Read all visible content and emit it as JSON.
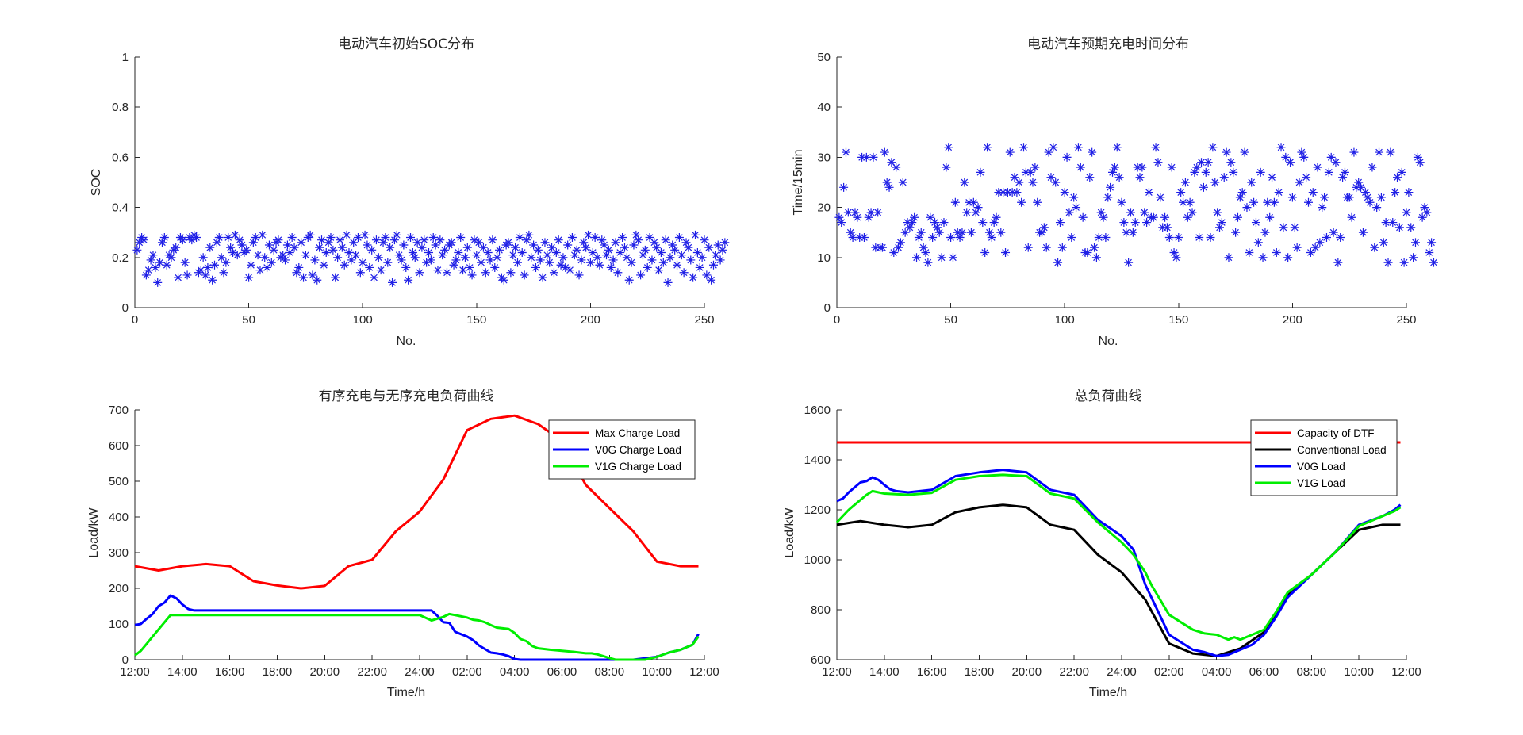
{
  "chart_data": [
    {
      "type": "scatter",
      "title": "电动汽车初始SOC分布",
      "xlabel": "No.",
      "ylabel": "SOC",
      "xlim": [
        0,
        250
      ],
      "ylim": [
        0,
        1
      ],
      "xticks": [
        "0",
        "50",
        "100",
        "150",
        "200",
        "250"
      ],
      "yticks": [
        "0",
        "0.2",
        "0.4",
        "0.6",
        "0.8",
        "1"
      ],
      "marker_color": "#1f1fe6",
      "grid": false,
      "x_start": 1,
      "y": [
        0.23,
        0.26,
        0.28,
        0.27,
        0.13,
        0.15,
        0.19,
        0.21,
        0.16,
        0.1,
        0.18,
        0.26,
        0.28,
        0.17,
        0.21,
        0.2,
        0.23,
        0.24,
        0.12,
        0.28,
        0.27,
        0.18,
        0.13,
        0.28,
        0.27,
        0.29,
        0.28,
        0.14,
        0.15,
        0.2,
        0.13,
        0.16,
        0.24,
        0.11,
        0.17,
        0.26,
        0.28,
        0.2,
        0.14,
        0.18,
        0.28,
        0.24,
        0.22,
        0.29,
        0.21,
        0.27,
        0.25,
        0.22,
        0.23,
        0.12,
        0.17,
        0.26,
        0.28,
        0.21,
        0.15,
        0.29,
        0.2,
        0.16,
        0.25,
        0.18,
        0.23,
        0.26,
        0.27,
        0.2,
        0.21,
        0.19,
        0.25,
        0.22,
        0.28,
        0.24,
        0.14,
        0.16,
        0.26,
        0.12,
        0.21,
        0.28,
        0.29,
        0.13,
        0.19,
        0.11,
        0.24,
        0.27,
        0.17,
        0.22,
        0.26,
        0.28,
        0.23,
        0.12,
        0.2,
        0.27,
        0.24,
        0.17,
        0.29,
        0.22,
        0.19,
        0.26,
        0.21,
        0.28,
        0.14,
        0.18,
        0.29,
        0.25,
        0.16,
        0.23,
        0.12,
        0.27,
        0.2,
        0.15,
        0.26,
        0.28,
        0.18,
        0.24,
        0.1,
        0.27,
        0.29,
        0.21,
        0.19,
        0.25,
        0.16,
        0.11,
        0.28,
        0.22,
        0.2,
        0.26,
        0.14,
        0.24,
        0.27,
        0.18,
        0.22,
        0.19,
        0.28,
        0.25,
        0.15,
        0.27,
        0.21,
        0.23,
        0.14,
        0.25,
        0.26,
        0.17,
        0.19,
        0.22,
        0.28,
        0.15,
        0.2,
        0.24,
        0.16,
        0.13,
        0.27,
        0.21,
        0.26,
        0.18,
        0.24,
        0.14,
        0.22,
        0.19,
        0.27,
        0.16,
        0.2,
        0.23,
        0.12,
        0.11,
        0.25,
        0.26,
        0.14,
        0.21,
        0.24,
        0.18,
        0.28,
        0.22,
        0.13,
        0.27,
        0.29,
        0.2,
        0.25,
        0.16,
        0.23,
        0.19,
        0.12,
        0.26,
        0.21,
        0.18,
        0.24,
        0.14,
        0.22,
        0.27,
        0.17,
        0.2,
        0.16,
        0.25,
        0.15,
        0.28,
        0.21,
        0.23,
        0.13,
        0.19,
        0.26,
        0.24,
        0.29,
        0.18,
        0.22,
        0.28,
        0.2,
        0.17,
        0.27,
        0.25,
        0.21,
        0.23,
        0.16,
        0.19,
        0.26,
        0.14,
        0.22,
        0.28,
        0.24,
        0.2,
        0.11,
        0.18,
        0.25,
        0.29,
        0.27,
        0.13,
        0.21,
        0.23,
        0.16,
        0.28,
        0.19,
        0.26,
        0.24,
        0.15,
        0.22,
        0.18,
        0.27,
        0.1,
        0.2,
        0.25,
        0.23,
        0.17,
        0.28,
        0.21,
        0.14,
        0.26,
        0.24,
        0.19,
        0.12,
        0.29,
        0.22,
        0.16,
        0.2,
        0.27,
        0.13,
        0.24,
        0.11,
        0.17,
        0.21,
        0.25,
        0.19,
        0.23,
        0.26
      ]
    },
    {
      "type": "scatter",
      "title": "电动汽车预期充电时间分布",
      "xlabel": "No.",
      "ylabel": "Time/15min",
      "xlim": [
        0,
        250
      ],
      "ylim": [
        0,
        50
      ],
      "xticks": [
        "0",
        "50",
        "100",
        "150",
        "200",
        "250"
      ],
      "yticks": [
        "0",
        "10",
        "20",
        "30",
        "40",
        "50"
      ],
      "marker_color": "#1f1fe6",
      "grid": false,
      "x_start": 1,
      "y": [
        18,
        17,
        24,
        31,
        19,
        15,
        14,
        19,
        18,
        14,
        30,
        14,
        30,
        18,
        19,
        30,
        12,
        19,
        12,
        12,
        31,
        25,
        24,
        29,
        11,
        28,
        12,
        13,
        25,
        15,
        17,
        16,
        17,
        18,
        10,
        14,
        15,
        12,
        11,
        9,
        18,
        14,
        17,
        16,
        15,
        10,
        17,
        28,
        32,
        14,
        10,
        21,
        15,
        14,
        15,
        25,
        19,
        21,
        15,
        21,
        19,
        20,
        27,
        17,
        11,
        32,
        15,
        14,
        17,
        18,
        23,
        15,
        23,
        11,
        23,
        31,
        23,
        26,
        23,
        25,
        21,
        32,
        27,
        12,
        27,
        25,
        28,
        21,
        15,
        15,
        16,
        12,
        31,
        26,
        32,
        25,
        9,
        17,
        12,
        23,
        30,
        19,
        14,
        22,
        20,
        32,
        28,
        18,
        11,
        11,
        26,
        31,
        12,
        10,
        14,
        19,
        18,
        14,
        22,
        24,
        27,
        28,
        32,
        26,
        21,
        17,
        15,
        9,
        19,
        15,
        17,
        28,
        26,
        28,
        19,
        17,
        23,
        18,
        18,
        32,
        29,
        22,
        16,
        18,
        16,
        14,
        28,
        11,
        10,
        14,
        23,
        21,
        25,
        18,
        21,
        19,
        27,
        28,
        14,
        29,
        24,
        27,
        29,
        14,
        32,
        25,
        19,
        16,
        17,
        26,
        31,
        10,
        29,
        27,
        15,
        18,
        22,
        23,
        31,
        20,
        11,
        25,
        21,
        17,
        13,
        27,
        10,
        15,
        21,
        18,
        26,
        21,
        11,
        23,
        32,
        16,
        30,
        10,
        29,
        22,
        16,
        12,
        25,
        31,
        30,
        26,
        21,
        11,
        23,
        12,
        28,
        13,
        20,
        22,
        14,
        27,
        30,
        15,
        29,
        9,
        14,
        26,
        27,
        22,
        22,
        18,
        31,
        24,
        25,
        24,
        15,
        23,
        22,
        21,
        28,
        12,
        20,
        31,
        22,
        13,
        17,
        9,
        31,
        17,
        23,
        26,
        16,
        27,
        9,
        19,
        23,
        16,
        10,
        13,
        30,
        29,
        18,
        20,
        19,
        11,
        13,
        9
      ]
    },
    {
      "type": "line",
      "title": "有序充电与无序充电负荷曲线",
      "xlabel": "Time/h",
      "ylabel": "Load/kW",
      "xlim": [
        12,
        36
      ],
      "ylim": [
        0,
        700
      ],
      "xticks": [
        "12:00",
        "14:00",
        "16:00",
        "18:00",
        "20:00",
        "22:00",
        "24:00",
        "02:00",
        "04:00",
        "06:00",
        "08:00",
        "10:00",
        "12:00"
      ],
      "yticks": [
        "0",
        "100",
        "200",
        "300",
        "400",
        "500",
        "600",
        "700"
      ],
      "legend": "top-right",
      "grid": false,
      "series": [
        {
          "name": "Max Charge Load",
          "color": "#ff0000",
          "x": [
            12,
            13,
            14,
            15,
            16,
            17,
            18,
            19,
            20,
            21,
            22,
            23,
            24,
            25,
            26,
            27,
            28,
            29,
            30,
            31,
            32,
            33,
            34,
            35,
            35.75
          ],
          "y": [
            262,
            250,
            262,
            268,
            262,
            220,
            208,
            200,
            207,
            262,
            280,
            360,
            415,
            505,
            643,
            675,
            684,
            660,
            613,
            490,
            425,
            360,
            275,
            262,
            262
          ]
        },
        {
          "name": "V0G Charge Load",
          "color": "#0000ff",
          "x": [
            12,
            12.25,
            12.5,
            12.75,
            13,
            13.25,
            13.5,
            13.75,
            14,
            14.25,
            14.5,
            15,
            16,
            17,
            18,
            19,
            20,
            21,
            22,
            23,
            24,
            24.5,
            24.75,
            25,
            25.25,
            25.5,
            26,
            26.25,
            26.5,
            26.75,
            27,
            27.25,
            27.5,
            27.75,
            28,
            28.25,
            29,
            30,
            31,
            32,
            33,
            34,
            34.5,
            35,
            35.5,
            35.75
          ],
          "y": [
            97,
            100,
            115,
            128,
            150,
            160,
            180,
            172,
            155,
            142,
            138,
            138,
            138,
            138,
            138,
            138,
            138,
            138,
            138,
            138,
            138,
            138,
            123,
            105,
            103,
            78,
            65,
            55,
            40,
            30,
            20,
            18,
            15,
            10,
            2,
            0,
            0,
            0,
            0,
            0,
            0,
            8,
            20,
            28,
            42,
            72
          ]
        },
        {
          "name": "V1G Charge Load",
          "color": "#00ee00",
          "x": [
            12,
            12.25,
            12.5,
            12.75,
            13,
            13.25,
            13.5,
            14,
            15,
            16,
            17,
            18,
            19,
            20,
            21,
            22,
            23,
            24,
            24.5,
            24.75,
            25,
            25.25,
            25.5,
            26,
            26.25,
            26.5,
            26.75,
            27,
            27.25,
            27.5,
            27.75,
            28,
            28.25,
            28.5,
            28.75,
            29,
            29.5,
            30,
            30.5,
            31,
            31.25,
            31.5,
            32,
            32.25,
            33,
            33.5,
            34,
            34.5,
            35,
            35.5,
            35.75
          ],
          "y": [
            12,
            25,
            45,
            65,
            85,
            105,
            125,
            125,
            125,
            125,
            125,
            125,
            125,
            125,
            125,
            125,
            125,
            125,
            110,
            115,
            120,
            128,
            125,
            118,
            112,
            110,
            105,
            97,
            90,
            88,
            86,
            75,
            58,
            52,
            38,
            32,
            28,
            25,
            22,
            18,
            18,
            15,
            5,
            0,
            0,
            0,
            8,
            20,
            28,
            42,
            65
          ]
        }
      ]
    },
    {
      "type": "line",
      "title": "总负荷曲线",
      "xlabel": "Time/h",
      "ylabel": "Load/kW",
      "xlim": [
        12,
        36
      ],
      "ylim": [
        600,
        1600
      ],
      "xticks": [
        "12:00",
        "14:00",
        "16:00",
        "18:00",
        "20:00",
        "22:00",
        "24:00",
        "02:00",
        "04:00",
        "06:00",
        "08:00",
        "10:00",
        "12:00"
      ],
      "yticks": [
        "600",
        "800",
        "1000",
        "1200",
        "1400",
        "1600"
      ],
      "legend": "top-right",
      "grid": false,
      "series": [
        {
          "name": "Capacity of DTF",
          "color": "#ff0000",
          "x": [
            12,
            35.75
          ],
          "y": [
            1470,
            1470
          ]
        },
        {
          "name": "Conventional Load",
          "color": "#000000",
          "x": [
            12,
            13,
            14,
            15,
            16,
            17,
            18,
            19,
            20,
            21,
            22,
            23,
            24,
            25,
            26,
            27,
            28,
            29,
            30,
            31,
            32,
            33,
            34,
            35,
            35.75
          ],
          "y": [
            1140,
            1155,
            1140,
            1130,
            1140,
            1190,
            1210,
            1220,
            1210,
            1140,
            1120,
            1020,
            950,
            840,
            665,
            625,
            615,
            645,
            710,
            860,
            940,
            1030,
            1120,
            1140,
            1140
          ]
        },
        {
          "name": "V0G Load",
          "color": "#0000ff",
          "x": [
            12,
            12.25,
            12.5,
            12.75,
            13,
            13.25,
            13.5,
            13.75,
            14,
            14.25,
            14.5,
            15,
            16,
            17,
            18,
            19,
            20,
            21,
            22,
            23,
            24,
            24.5,
            25,
            25.5,
            26,
            26.5,
            27,
            27.5,
            28,
            28.5,
            29,
            29.5,
            30,
            30.5,
            31,
            32,
            33,
            34,
            35,
            35.5,
            35.75
          ],
          "y": [
            1235,
            1245,
            1270,
            1290,
            1310,
            1315,
            1330,
            1320,
            1300,
            1282,
            1275,
            1270,
            1280,
            1335,
            1350,
            1360,
            1350,
            1280,
            1260,
            1160,
            1095,
            1040,
            900,
            800,
            700,
            670,
            640,
            630,
            615,
            620,
            640,
            660,
            700,
            770,
            850,
            940,
            1030,
            1140,
            1175,
            1200,
            1220
          ]
        },
        {
          "name": "V1G Load",
          "color": "#00ee00",
          "x": [
            12,
            12.25,
            12.5,
            12.75,
            13,
            13.25,
            13.5,
            14,
            15,
            16,
            17,
            18,
            19,
            20,
            21,
            22,
            23,
            24,
            24.5,
            25,
            25.25,
            25.5,
            26,
            26.5,
            27,
            27.5,
            28,
            28.25,
            28.5,
            28.75,
            29,
            29.5,
            30,
            30.5,
            31,
            32,
            33,
            34,
            35,
            35.5,
            35.75
          ],
          "y": [
            1150,
            1175,
            1200,
            1220,
            1240,
            1260,
            1275,
            1265,
            1260,
            1268,
            1320,
            1335,
            1340,
            1335,
            1265,
            1245,
            1150,
            1070,
            1020,
            950,
            900,
            860,
            780,
            750,
            720,
            705,
            700,
            690,
            680,
            690,
            680,
            700,
            720,
            790,
            870,
            940,
            1030,
            1135,
            1175,
            1195,
            1210
          ]
        }
      ]
    }
  ]
}
